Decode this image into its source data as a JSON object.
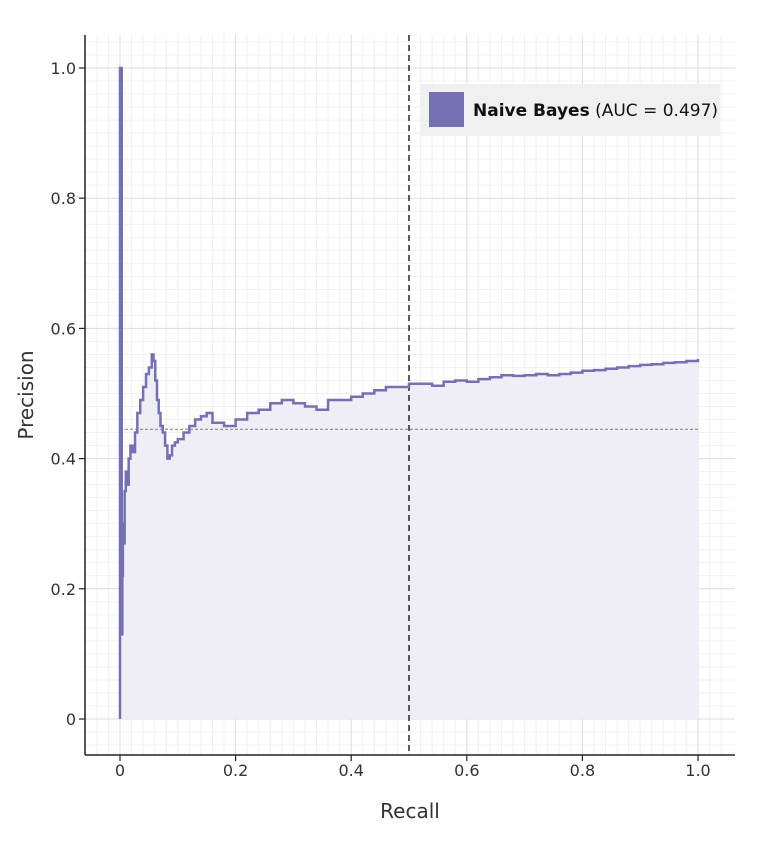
{
  "chart_data": {
    "type": "line",
    "xlabel": "Recall",
    "ylabel": "Precision",
    "xlim": [
      -0.06,
      1.06
    ],
    "ylim": [
      -0.055,
      1.05
    ],
    "x_ticks": [
      0,
      0.2,
      0.4,
      0.6,
      0.8,
      1.0
    ],
    "x_tick_labels": [
      "0",
      "0.2",
      "0.4",
      "0.6",
      "0.8",
      "1.0"
    ],
    "y_ticks": [
      0,
      0.2,
      0.4,
      0.6,
      0.8,
      1.0
    ],
    "y_tick_labels": [
      "0",
      "0.2",
      "0.4",
      "0.6",
      "0.8",
      "1.0"
    ],
    "grid": true,
    "legend_position": "top-right",
    "reference_lines": {
      "vertical_x": 0.5,
      "vertical_style": "dashed",
      "horizontal_y": 0.445,
      "horizontal_style": "dotted"
    },
    "series": [
      {
        "name": "Naive Bayes",
        "label_suffix": " (AUC = 0.497)",
        "color": "#7570b3",
        "fill_color": "#efeef6",
        "x": [
          0,
          0,
          0.003,
          0.004,
          0.005,
          0.007,
          0.008,
          0.01,
          0.012,
          0.015,
          0.018,
          0.022,
          0.026,
          0.03,
          0.035,
          0.04,
          0.045,
          0.05,
          0.055,
          0.058,
          0.061,
          0.064,
          0.067,
          0.07,
          0.074,
          0.078,
          0.082,
          0.086,
          0.09,
          0.095,
          0.1,
          0.11,
          0.12,
          0.13,
          0.14,
          0.15,
          0.16,
          0.17,
          0.18,
          0.2,
          0.22,
          0.24,
          0.26,
          0.28,
          0.3,
          0.32,
          0.34,
          0.36,
          0.38,
          0.4,
          0.42,
          0.44,
          0.46,
          0.48,
          0.5,
          0.52,
          0.54,
          0.56,
          0.58,
          0.6,
          0.62,
          0.64,
          0.66,
          0.68,
          0.7,
          0.72,
          0.74,
          0.76,
          0.78,
          0.8,
          0.82,
          0.84,
          0.86,
          0.88,
          0.9,
          0.92,
          0.94,
          0.96,
          0.98,
          1.0
        ],
        "y": [
          0,
          1.0,
          0.13,
          0.22,
          0.3,
          0.27,
          0.35,
          0.38,
          0.36,
          0.4,
          0.42,
          0.41,
          0.44,
          0.47,
          0.49,
          0.51,
          0.53,
          0.54,
          0.56,
          0.55,
          0.52,
          0.49,
          0.47,
          0.45,
          0.44,
          0.42,
          0.4,
          0.405,
          0.42,
          0.425,
          0.43,
          0.44,
          0.45,
          0.46,
          0.465,
          0.47,
          0.455,
          0.455,
          0.45,
          0.46,
          0.47,
          0.475,
          0.485,
          0.49,
          0.485,
          0.48,
          0.475,
          0.49,
          0.49,
          0.495,
          0.5,
          0.505,
          0.51,
          0.51,
          0.515,
          0.515,
          0.512,
          0.518,
          0.52,
          0.518,
          0.522,
          0.525,
          0.528,
          0.527,
          0.528,
          0.53,
          0.528,
          0.53,
          0.532,
          0.535,
          0.536,
          0.538,
          0.54,
          0.542,
          0.544,
          0.545,
          0.547,
          0.548,
          0.55,
          0.553
        ]
      }
    ]
  }
}
